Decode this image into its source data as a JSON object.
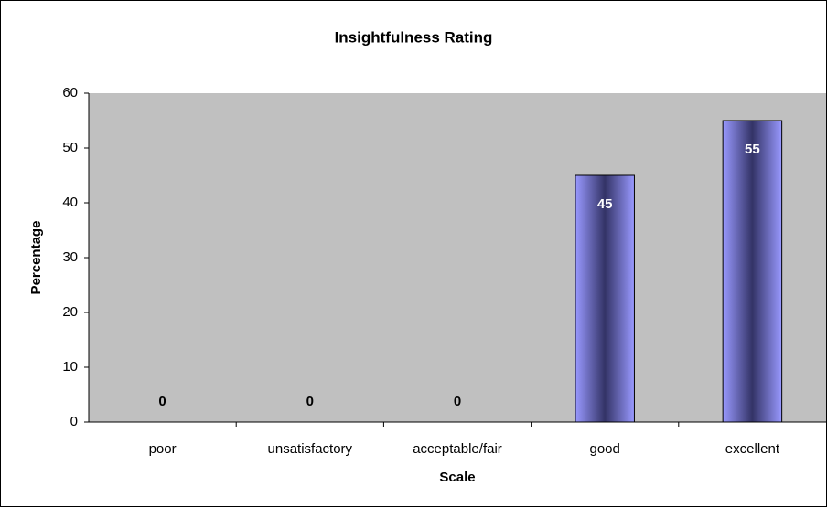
{
  "chart_data": {
    "type": "bar",
    "title": "Insightfulness Rating",
    "x_label": "Scale",
    "y_label": "Percentage",
    "categories": [
      "poor",
      "unsatisfactory",
      "acceptable/fair",
      "good",
      "excellent"
    ],
    "values": [
      0,
      0,
      0,
      45,
      55
    ],
    "color": "#9999ff",
    "ylim": [
      0,
      60
    ],
    "yticks": [
      0,
      10,
      20,
      30,
      40,
      50,
      60
    ],
    "grid": false
  }
}
